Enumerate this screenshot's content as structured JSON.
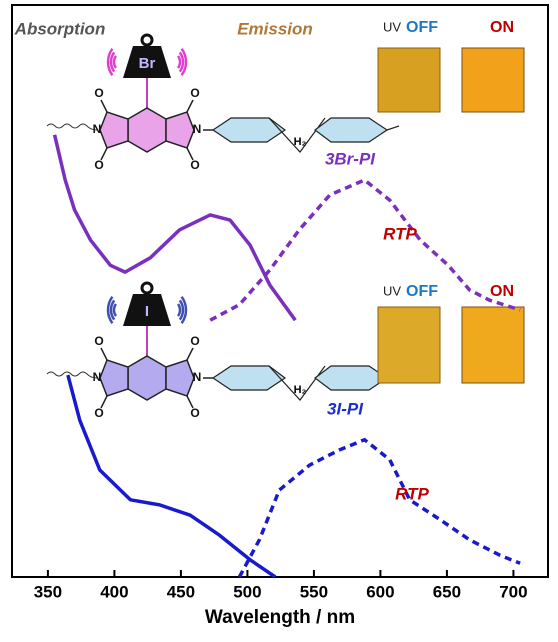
{
  "chart_data": {
    "type": "line",
    "xlabel": "Wavelength / nm",
    "xlim": [
      323,
      726
    ],
    "xticks": [
      350,
      400,
      450,
      500,
      550,
      600,
      650,
      700
    ],
    "ylim": [
      0,
      10
    ],
    "headers": [
      {
        "text": "Absorption",
        "color": "#555555"
      },
      {
        "text": "Emission",
        "color": "#b07838"
      }
    ],
    "annotations": [
      {
        "text": "3Br-PI",
        "color": "#7b2fbe"
      },
      {
        "text": "RTP",
        "color": "#c00000"
      },
      {
        "text": "3I-PI",
        "color": "#1a2fcc"
      },
      {
        "text": "RTP",
        "color": "#c00000"
      }
    ],
    "structures": [
      {
        "halogen": "Br",
        "atoms": [
          "O",
          "O",
          "O",
          "O",
          "N",
          "N"
        ],
        "bridge": "H₂",
        "ring_color": "#e9a3e9",
        "wave_color": "#e040d0"
      },
      {
        "halogen": "I",
        "atoms": [
          "O",
          "O",
          "O",
          "O",
          "N",
          "N"
        ],
        "bridge": "H₂",
        "ring_color": "#b4aaf0",
        "wave_color": "#4050b0"
      }
    ],
    "photos": [
      {
        "uv": "UV",
        "off": "OFF",
        "on": "ON",
        "off_color": "#d8a020",
        "on_color": "#f2a21a"
      },
      {
        "uv": "UV",
        "off": "OFF",
        "on": "ON",
        "off_color": "#dcaa28",
        "on_color": "#f0a81c"
      }
    ],
    "series": [
      {
        "style": "solid",
        "color": "#7b2fbe",
        "x": [
          355,
          363,
          370,
          382,
          397,
          408,
          427,
          449,
          472,
          487,
          502,
          517,
          536
        ],
        "values": [
          7.73,
          6.94,
          6.42,
          5.89,
          5.45,
          5.33,
          5.58,
          6.07,
          6.33,
          6.24,
          5.8,
          5.1,
          4.49
        ]
      },
      {
        "style": "dashed",
        "color": "#7b2fbe",
        "x": [
          472,
          494,
          517,
          539,
          562,
          588,
          607,
          630,
          651,
          667,
          682,
          705
        ],
        "values": [
          4.49,
          4.76,
          5.37,
          6.07,
          6.68,
          6.94,
          6.59,
          5.89,
          5.45,
          5.02,
          4.84,
          4.67
        ]
      },
      {
        "style": "solid",
        "color": "#1a1acc",
        "x": [
          365,
          374,
          389,
          412,
          434,
          457,
          479,
          502,
          521
        ],
        "values": [
          3.53,
          2.74,
          1.87,
          1.35,
          1.26,
          1.08,
          0.73,
          0.3,
          0
        ]
      },
      {
        "style": "dashed",
        "color": "#1a1acc",
        "x": [
          494,
          509,
          524,
          547,
          569,
          588,
          607,
          622,
          645,
          667,
          690,
          705
        ],
        "values": [
          0,
          0.65,
          1.52,
          1.96,
          2.22,
          2.4,
          2.05,
          1.35,
          1.0,
          0.65,
          0.38,
          0.24
        ]
      }
    ]
  }
}
